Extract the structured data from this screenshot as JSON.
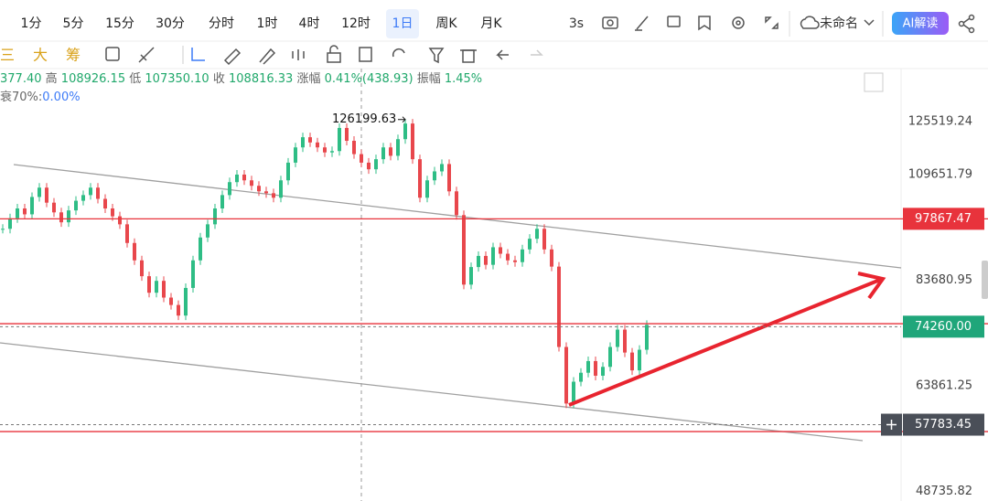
{
  "toolbar": {
    "intervals": [
      "1分",
      "5分",
      "15分",
      "30分",
      "分时",
      "1时",
      "4时",
      "12时",
      "1日",
      "周K",
      "月K"
    ],
    "selected": 8,
    "refresh": "3s",
    "layout_name": "未命名",
    "ai_button": "AI解读"
  },
  "tools": [
    "三",
    "大",
    "筹"
  ],
  "ohlc": [
    {
      "text": "377.40",
      "tone": "value"
    },
    {
      "text": "高",
      "tone": "label"
    },
    {
      "text": "108926.15",
      "tone": "value"
    },
    {
      "text": "低",
      "tone": "label"
    },
    {
      "text": "107350.10",
      "tone": "value"
    },
    {
      "text": "收",
      "tone": "label"
    },
    {
      "text": "108816.33",
      "tone": "value"
    },
    {
      "text": "涨幅",
      "tone": "label"
    },
    {
      "text": "0.41%(438.93)",
      "tone": "value"
    },
    {
      "text": "振幅",
      "tone": "label"
    },
    {
      "text": "1.45%",
      "tone": "value"
    }
  ],
  "indicator": {
    "label": "衰70%:",
    "value": "0.00%"
  },
  "chart": {
    "log_scale": true,
    "range": [
      47530,
      143770
    ],
    "ticks": [
      125519.24,
      109651.79,
      83680.95,
      63861.25,
      48735.82
    ],
    "closes": [
      95400,
      98000,
      100500,
      99000,
      103500,
      106000,
      102000,
      99500,
      97000,
      100000,
      102500,
      104000,
      106000,
      103000,
      100500,
      98500,
      96500,
      92000,
      88000,
      84500,
      81000,
      83500,
      80000,
      78500,
      76400,
      82000,
      88000,
      93300,
      96500,
      100500,
      104000,
      107500,
      109600,
      108000,
      106500,
      105000,
      104500,
      103300,
      108000,
      113000,
      117500,
      120600,
      119000,
      117500,
      116000,
      116400,
      123500,
      119500,
      115500,
      113000,
      111100,
      114000,
      117500,
      115000,
      120000,
      124900,
      114000,
      103300,
      108000,
      110500,
      112600,
      105000,
      98800,
      82700,
      86500,
      89000,
      87000,
      91000,
      89500,
      88000,
      87600,
      90500,
      93000,
      95400,
      90500,
      86600,
      70500,
      61000,
      64500,
      66000,
      68000,
      65500,
      67000,
      70500,
      73700,
      69500,
      66400,
      70000,
      74600
    ],
    "up_color": "#2ebd85",
    "down_color": "#e8474c",
    "high_marker": 126199.63,
    "red_lines": [
      97867.47,
      74830,
      56770
    ],
    "dashed_lines": [
      74260,
      57783.45
    ],
    "price_tags": [
      {
        "value": 97867.47,
        "color": "#e8333c"
      },
      {
        "value": 74260,
        "label": "74260.00",
        "color": "#1fa67a"
      },
      {
        "value": 57783.45,
        "color": "#4a4f58"
      }
    ]
  }
}
